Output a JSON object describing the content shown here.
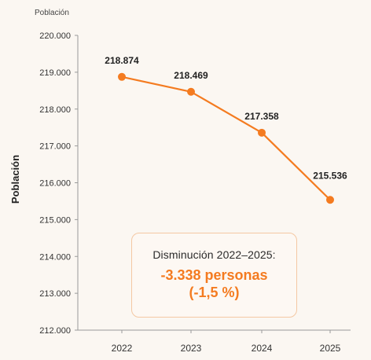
{
  "chart_data": {
    "type": "line",
    "title": "Población",
    "xlabel": "",
    "ylabel": "Población",
    "categories": [
      "2022",
      "2023",
      "2024",
      "2025"
    ],
    "series": [
      {
        "values": [
          218874,
          218469,
          217358,
          215536
        ],
        "labels": [
          "218.874",
          "218.469",
          "217.358",
          "215.536"
        ]
      }
    ],
    "ylim": [
      212000,
      220000
    ],
    "yticks": [
      212000,
      213000,
      214000,
      215000,
      216000,
      217000,
      218000,
      219000,
      220000
    ],
    "ytick_labels": [
      "212.000",
      "213.000",
      "214.000",
      "215.000",
      "216.000",
      "217.000",
      "218.000",
      "219.000",
      "220.000"
    ],
    "grid": false,
    "line_color": "#f47b20",
    "annotation": {
      "title": "Disminución 2022–2025:",
      "value": "-3.338 personas",
      "percent": "(-1,5 %)"
    }
  }
}
